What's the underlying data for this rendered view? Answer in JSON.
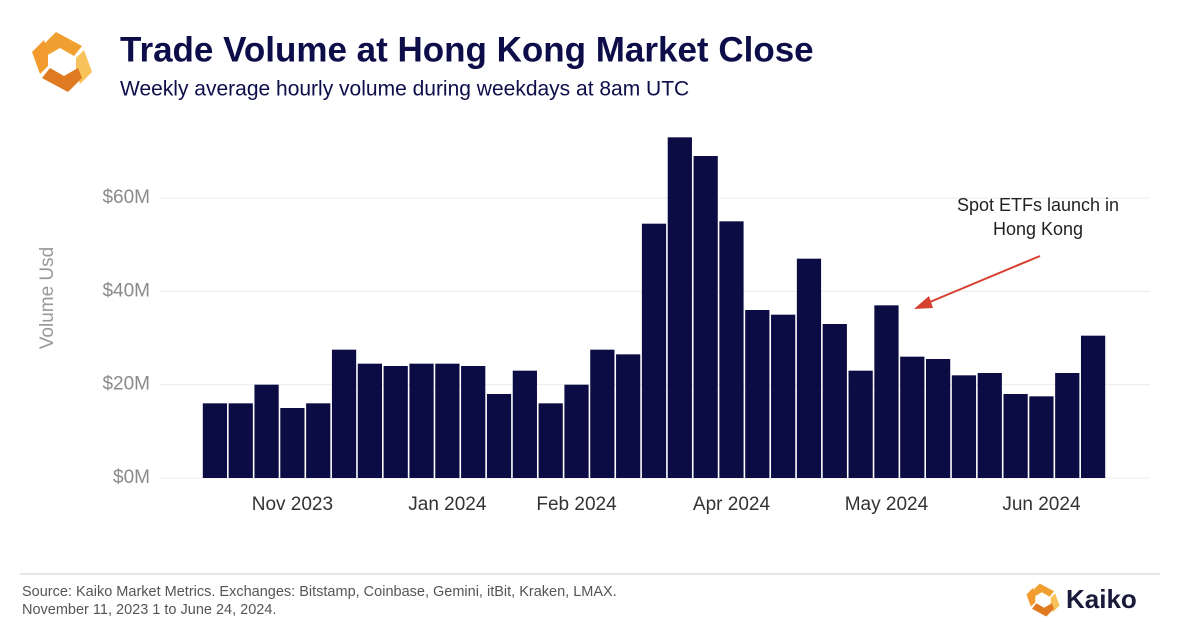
{
  "chart_data": {
    "type": "bar",
    "title": "Trade Volume at Hong Kong Market Close",
    "subtitle": "Weekly average hourly volume during weekdays at 8am UTC",
    "y_label": "Volume Usd",
    "categories": [
      null,
      null,
      null,
      "Nov 2023",
      null,
      null,
      null,
      null,
      null,
      "Jan 2024",
      null,
      null,
      null,
      null,
      "Feb 2024",
      null,
      null,
      null,
      null,
      null,
      "Apr 2024",
      null,
      null,
      null,
      null,
      null,
      "May 2024",
      null,
      null,
      null,
      null,
      null,
      "Jun 2024",
      null,
      null
    ],
    "values": [
      16,
      16,
      20,
      15,
      16,
      27.5,
      24.5,
      24,
      24.5,
      24.5,
      24,
      18,
      23,
      16,
      20,
      27.5,
      26.5,
      54.5,
      73,
      69,
      55,
      36,
      35,
      47,
      33,
      23,
      37,
      26,
      25.5,
      22,
      22.5,
      18,
      17.5,
      22.5,
      30.5
    ],
    "color": "#0c0c45",
    "ylim": [
      0,
      78
    ],
    "yticks": [
      {
        "value": 0,
        "label": "$0M"
      },
      {
        "value": 20,
        "label": "$20M"
      },
      {
        "value": 40,
        "label": "$40M"
      },
      {
        "value": 60,
        "label": "$60M"
      }
    ],
    "grid": true,
    "annotation": {
      "lines": [
        "Spot ETFs launch in",
        "Hong Kong"
      ],
      "color": "#d6402f"
    },
    "source": [
      "Source: Kaiko Market Metrics. Exchanges: Bitstamp, Coinbase, Gemini, itBit, Kraken, LMAX.",
      "November 11, 2023 1 to June 24, 2024."
    ],
    "brand": "Kaiko"
  }
}
